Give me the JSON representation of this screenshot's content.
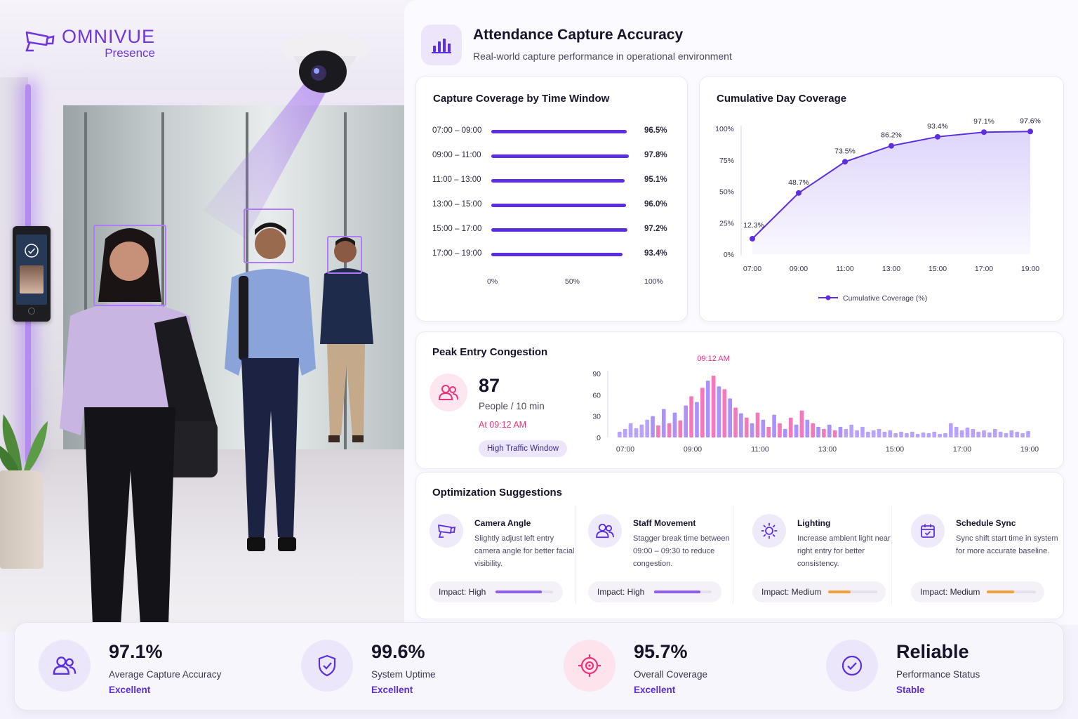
{
  "brand": {
    "name": "OMNIVUE",
    "product": "Presence"
  },
  "header": {
    "title": "Attendance Capture Accuracy",
    "subtitle": "Real-world capture performance in operational environment"
  },
  "coverage_by_window": {
    "title": "Capture Coverage by Time Window",
    "chart_data": {
      "type": "bar",
      "orientation": "horizontal",
      "categories": [
        "07:00 – 09:00",
        "09:00 – 11:00",
        "11:00 – 13:00",
        "13:00 – 15:00",
        "15:00 – 17:00",
        "17:00 – 19:00"
      ],
      "values": [
        96.5,
        97.8,
        95.1,
        96.0,
        97.2,
        93.4
      ],
      "value_labels": [
        "96.5%",
        "97.8%",
        "95.1%",
        "96.0%",
        "97.2%",
        "93.4%"
      ],
      "x_ticks": [
        "0%",
        "50%",
        "100%"
      ],
      "xlim": [
        0,
        100
      ],
      "color": "#5b2fe0"
    }
  },
  "cumulative": {
    "title": "Cumulative Day Coverage",
    "chart_data": {
      "type": "area",
      "x": [
        "07:00",
        "09:00",
        "11:00",
        "13:00",
        "15:00",
        "17:00",
        "19:00"
      ],
      "values": [
        12.3,
        48.7,
        73.5,
        86.2,
        93.4,
        97.1,
        97.6
      ],
      "value_labels": [
        "12.3%",
        "48.7%",
        "73.5%",
        "86.2%",
        "93.4%",
        "97.1%",
        "97.6%"
      ],
      "y_ticks": [
        "0%",
        "25%",
        "50%",
        "75%",
        "100%"
      ],
      "ylim": [
        0,
        100
      ],
      "legend": "Cumulative Coverage (%)",
      "legend_position": "bottom",
      "color": "#5b2fe0"
    }
  },
  "peak": {
    "title": "Peak Entry Congestion",
    "value": "87",
    "unit": "People / 10 min",
    "time": "At 09:12 AM",
    "badge": "High Traffic Window",
    "chart_data": {
      "type": "bar",
      "peak_label": "09:12 AM",
      "x_ticks": [
        "07:00",
        "09:00",
        "11:00",
        "13:00",
        "15:00",
        "17:00",
        "19:00"
      ],
      "y_ticks": [
        "0",
        "30",
        "60",
        "90"
      ],
      "ylim": [
        0,
        90
      ],
      "values": [
        8,
        12,
        20,
        13,
        18,
        25,
        30,
        17,
        40,
        20,
        35,
        24,
        45,
        58,
        50,
        70,
        80,
        87,
        72,
        68,
        55,
        42,
        34,
        28,
        20,
        35,
        25,
        15,
        32,
        20,
        12,
        28,
        18,
        38,
        25,
        20,
        15,
        12,
        18,
        10,
        15,
        12,
        18,
        10,
        15,
        8,
        10,
        12,
        8,
        10,
        6,
        8,
        6,
        8,
        5,
        7,
        6,
        8,
        5,
        6,
        20,
        15,
        10,
        14,
        12,
        8,
        10,
        7,
        12,
        8,
        6,
        10,
        8,
        6,
        9
      ],
      "highlight_range": [
        6,
        40
      ],
      "colors": {
        "base": "#a78bfa",
        "highlight": "#f472b6"
      }
    }
  },
  "suggestions": {
    "title": "Optimization Suggestions",
    "items": [
      {
        "title": "Camera Angle",
        "desc": "Slightly adjust left entry camera angle for better facial visibility.",
        "impact": "Impact: High",
        "level": 0.8,
        "color": "#8b5cf6",
        "icon": "camera-icon"
      },
      {
        "title": "Staff Movement",
        "desc": "Stagger break time between 09:00 – 09:30 to reduce congestion.",
        "impact": "Impact: High",
        "level": 0.8,
        "color": "#8b5cf6",
        "icon": "users-icon"
      },
      {
        "title": "Lighting",
        "desc": "Increase ambient light near right entry for better consistency.",
        "impact": "Impact: Medium",
        "level": 0.45,
        "color": "#f59e3d",
        "icon": "sun-icon"
      },
      {
        "title": "Schedule Sync",
        "desc": "Sync shift start time in system for more accurate baseline.",
        "impact": "Impact: Medium",
        "level": 0.55,
        "color": "#f59e3d",
        "icon": "calendar-icon"
      }
    ]
  },
  "kpis": [
    {
      "value": "97.1%",
      "label": "Average Capture Accuracy",
      "status": "Excellent",
      "icon": "users-icon"
    },
    {
      "value": "99.6%",
      "label": "System Uptime",
      "status": "Excellent",
      "icon": "shield-icon"
    },
    {
      "value": "95.7%",
      "label": "Overall Coverage",
      "status": "Excellent",
      "icon": "target-icon"
    },
    {
      "value": "Reliable",
      "label": "Performance Status",
      "status": "Stable",
      "icon": "check-circle-icon"
    }
  ]
}
